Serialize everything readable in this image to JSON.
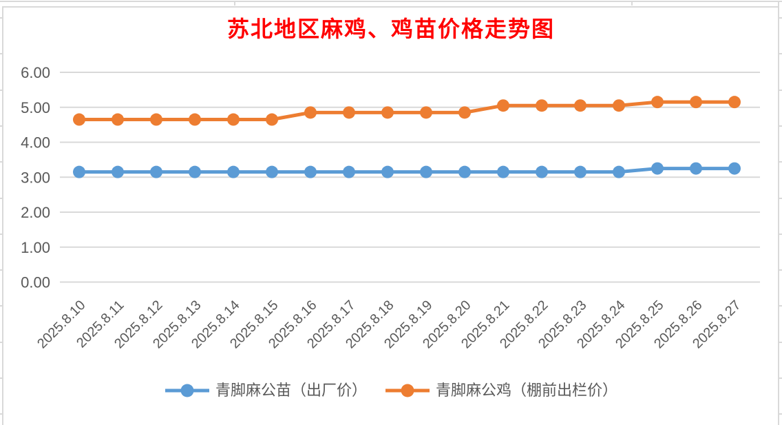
{
  "chart_data": {
    "type": "line",
    "title": "苏北地区麻鸡、鸡苗价格走势图",
    "title_color": "#FF0000",
    "categories": [
      "2025.8.10",
      "2025.8.11",
      "2025.8.12",
      "2025.8.13",
      "2025.8.14",
      "2025.8.15",
      "2025.8.16",
      "2025.8.17",
      "2025.8.18",
      "2025.8.19",
      "2025.8.20",
      "2025.8.21",
      "2025.8.22",
      "2025.8.23",
      "2025.8.24",
      "2025.8.25",
      "2025.8.26",
      "2025.8.27"
    ],
    "series": [
      {
        "name": "青脚麻公苗（出厂价）",
        "color": "#5B9BD5",
        "values": [
          3.15,
          3.15,
          3.15,
          3.15,
          3.15,
          3.15,
          3.15,
          3.15,
          3.15,
          3.15,
          3.15,
          3.15,
          3.15,
          3.15,
          3.15,
          3.25,
          3.25,
          3.25
        ]
      },
      {
        "name": "青脚麻公鸡（棚前出栏价）",
        "color": "#ED7D31",
        "values": [
          4.65,
          4.65,
          4.65,
          4.65,
          4.65,
          4.65,
          4.85,
          4.85,
          4.85,
          4.85,
          4.85,
          5.05,
          5.05,
          5.05,
          5.05,
          5.15,
          5.15,
          5.15
        ]
      }
    ],
    "ylim": [
      0,
      6
    ],
    "ytick_step": 1,
    "ytick_labels": [
      "0.00",
      "1.00",
      "2.00",
      "3.00",
      "4.00",
      "5.00",
      "6.00"
    ],
    "xlabel": "",
    "ylabel": "",
    "grid": true,
    "legend_position": "bottom"
  },
  "style": {
    "grid_color": "#D9D9D9",
    "axis_text_color": "#595959",
    "frame_color": "#D9D9D9",
    "background": "#FFFFFF"
  }
}
